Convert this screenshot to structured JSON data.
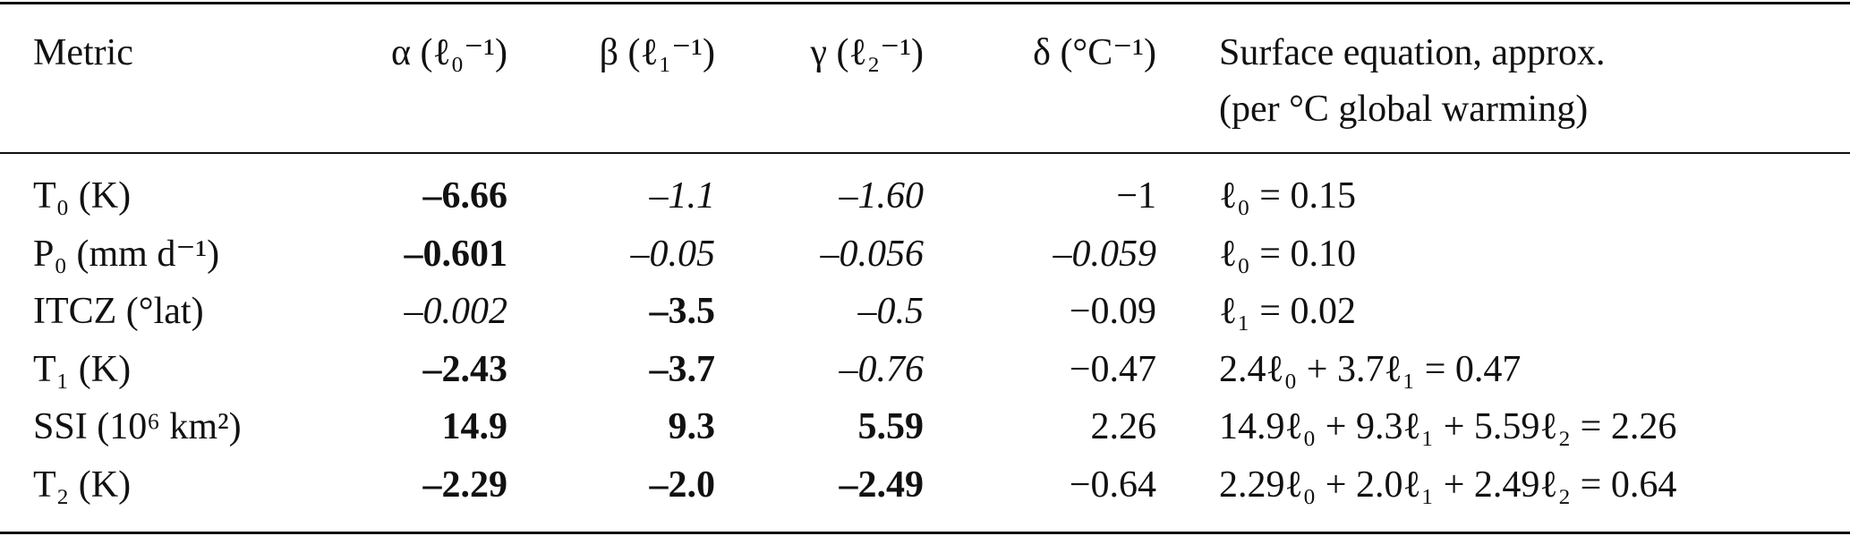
{
  "table": {
    "header": {
      "metric": "Metric",
      "columns": [
        "α (ℓ₀⁻¹)",
        "β (ℓ₁⁻¹)",
        "γ (ℓ₂⁻¹)",
        "δ (°C⁻¹)"
      ],
      "equation": [
        "Surface equation, approx.",
        "(per °C global warming)"
      ]
    },
    "rows": [
      {
        "metric": "T₀ (K)",
        "cells": [
          {
            "text": "–6.66",
            "style": "bold"
          },
          {
            "text": "–1.1",
            "style": "italic"
          },
          {
            "text": "–1.60",
            "style": "italic"
          },
          {
            "text": "−1",
            "style": "normal"
          }
        ],
        "equation": "ℓ₀ = 0.15"
      },
      {
        "metric": "P₀ (mm d⁻¹)",
        "cells": [
          {
            "text": "–0.601",
            "style": "bold"
          },
          {
            "text": "–0.05",
            "style": "italic"
          },
          {
            "text": "–0.056",
            "style": "italic"
          },
          {
            "text": "–0.059",
            "style": "italic"
          }
        ],
        "equation": "ℓ₀ = 0.10"
      },
      {
        "metric": "ITCZ (°lat)",
        "cells": [
          {
            "text": "–0.002",
            "style": "italic"
          },
          {
            "text": "–3.5",
            "style": "bold"
          },
          {
            "text": "–0.5",
            "style": "italic"
          },
          {
            "text": "−0.09",
            "style": "normal"
          }
        ],
        "equation": "ℓ₁ = 0.02"
      },
      {
        "metric": "T₁ (K)",
        "cells": [
          {
            "text": "–2.43",
            "style": "bold"
          },
          {
            "text": "–3.7",
            "style": "bold"
          },
          {
            "text": "–0.76",
            "style": "italic"
          },
          {
            "text": "−0.47",
            "style": "normal"
          }
        ],
        "equation": "2.4ℓ₀ + 3.7ℓ₁ = 0.47"
      },
      {
        "metric": "SSI (10⁶ km²)",
        "cells": [
          {
            "text": "14.9",
            "style": "bold"
          },
          {
            "text": "9.3",
            "style": "bold"
          },
          {
            "text": "5.59",
            "style": "bold"
          },
          {
            "text": "2.26",
            "style": "normal"
          }
        ],
        "equation": "14.9ℓ₀ + 9.3ℓ₁ + 5.59ℓ₂ = 2.26"
      },
      {
        "metric": "T₂ (K)",
        "cells": [
          {
            "text": "–2.29",
            "style": "bold"
          },
          {
            "text": "–2.0",
            "style": "bold"
          },
          {
            "text": "–2.49",
            "style": "bold"
          },
          {
            "text": "−0.64",
            "style": "normal"
          }
        ],
        "equation": "2.29ℓ₀ + 2.0ℓ₁ + 2.49ℓ₂ = 0.64"
      }
    ]
  }
}
